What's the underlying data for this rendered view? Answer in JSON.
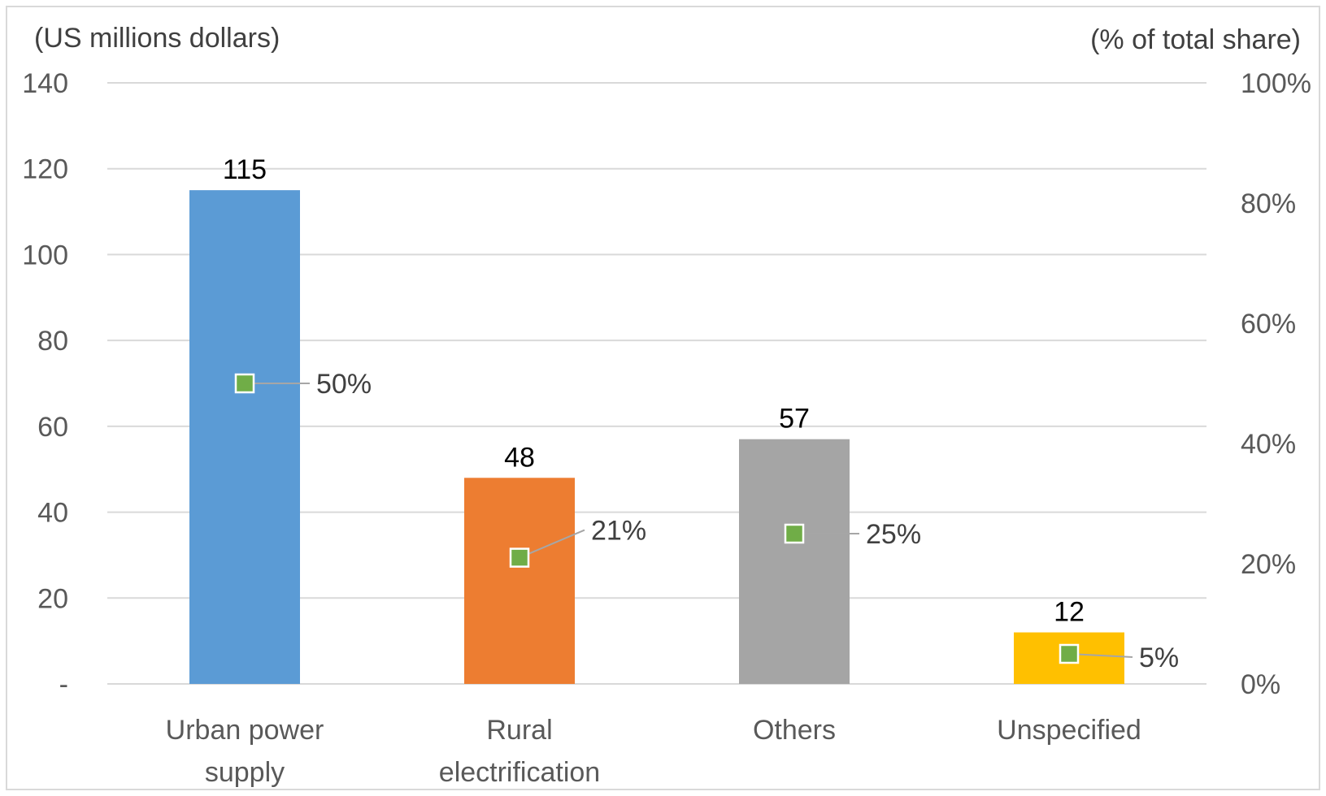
{
  "chart_data": {
    "type": "bar",
    "title": "",
    "left_axis_title": "(US millions dollars)",
    "right_axis_title": "(% of total share)",
    "categories": [
      [
        "Urban power",
        "supply"
      ],
      [
        "Rural",
        "electrification"
      ],
      [
        "Others"
      ],
      [
        "Unspecified"
      ]
    ],
    "series": [
      {
        "values": [
          115,
          48,
          57,
          12
        ],
        "value_labels": [
          "115",
          "48",
          "57",
          "12"
        ],
        "colors": [
          "#5B9BD5",
          "#ED7D31",
          "#A5A5A5",
          "#FFC000"
        ],
        "axis": "left"
      },
      {
        "values": [
          50,
          21,
          25,
          5
        ],
        "value_labels": [
          "50%",
          "21%",
          "25%",
          "5%"
        ],
        "marker_color": "#70AD47",
        "marker": "square",
        "axis": "right"
      }
    ],
    "left_axis": {
      "ylim": [
        0,
        140
      ],
      "ticks": [
        0,
        20,
        40,
        60,
        80,
        100,
        120,
        140
      ],
      "tick_labels": [
        "-",
        "20",
        "40",
        "60",
        "80",
        "100",
        "120",
        "140"
      ]
    },
    "right_axis": {
      "ylim": [
        0,
        100
      ],
      "ticks": [
        0,
        20,
        40,
        60,
        80,
        100
      ],
      "tick_labels": [
        "0%",
        "20%",
        "40%",
        "60%",
        "80%",
        "100%"
      ]
    },
    "grid": true,
    "legend": "none"
  }
}
